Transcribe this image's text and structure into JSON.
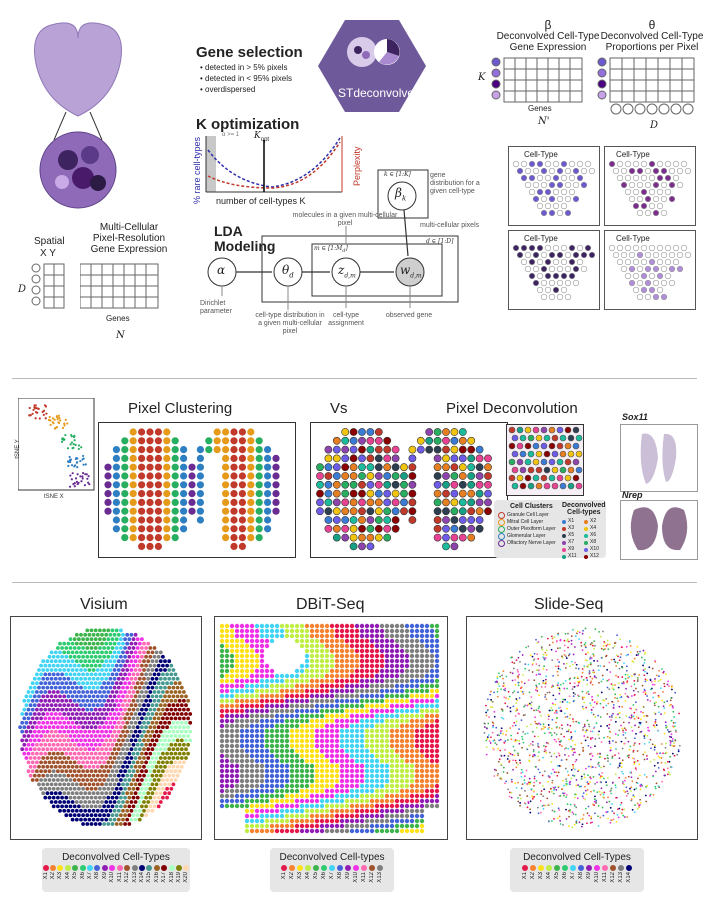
{
  "top": {
    "gene_selection": {
      "title": "Gene selection",
      "bullets": [
        "detected in > 5% pixels",
        "detected in < 95% pixels",
        "overdispersed"
      ]
    },
    "logo": "STdeconvolve",
    "k_opt": {
      "title": "K optimization",
      "ylabel": "% rare cell-types",
      "ylabel2": "Perplexity",
      "xlabel": "number of cell-types K",
      "kopt_label": "K",
      "kopt_sub": "opt",
      "alpha_note": "α >= 1"
    },
    "lda": {
      "title_line1": "LDA",
      "title_line2": "Modeling",
      "alpha": "α",
      "theta": "θ",
      "theta_sub": "d",
      "z": "z",
      "z_sub": "d,m",
      "w": "w",
      "w_sub": "d,m",
      "beta": "β",
      "beta_sub": "k",
      "k_plate": "k ∈ [1:K]",
      "m_plate": "m ∈ [1:M",
      "m_plate_sub": "d",
      "d_plate": "d ∈ [1:D]",
      "dirichlet": "Dirichlet parameter",
      "theta_desc": "cell-type distribution in a given multi-cellular pixel",
      "z_desc": "cell-type assignment",
      "w_desc": "observed gene",
      "molecules": "molecules in a given multi-cellular pixel",
      "multi_pixels": "multi-cellular pixels",
      "beta_desc": "gene distribution for a given cell-type"
    },
    "input": {
      "spatial": "Spatial",
      "xy": "X Y",
      "mc1": "Multi-Cellular",
      "mc2": "Pixel-Resolution",
      "mc3": "Gene Expression",
      "D": "D",
      "genes": "Genes",
      "N": "N"
    },
    "beta_panel": {
      "symbol": "β",
      "line1": "Deconvolved Cell-Type",
      "line2": "Gene Expression",
      "K": "K",
      "genes": "Genes",
      "Nprime": "N'"
    },
    "theta_panel": {
      "symbol": "θ",
      "line1": "Deconvolved Cell-Type",
      "line2": "Proportions per Pixel",
      "D": "D"
    },
    "celltype_label": "Cell-Type"
  },
  "middle": {
    "pixel_clustering": "Pixel Clustering",
    "vs": "Vs",
    "pixel_deconvolution": "Pixel Deconvolution",
    "tsne_x": "tSNE X",
    "tsne_y": "tSNE Y",
    "sox11": "Sox11",
    "nrep": "Nrep",
    "cell_clusters_title": "Cell Clusters",
    "cell_clusters": [
      "Granule Cell Layer",
      "Mitral Cell Layer",
      "Outer Plexiform Layer",
      "Glomerular Layer",
      "Olfactory Nerve Layer"
    ],
    "cluster_colors": [
      "#c0392b",
      "#e69a1a",
      "#27ae60",
      "#2e7fc2",
      "#6a2c91"
    ],
    "deconv_title1": "Deconvolved",
    "deconv_title2": "Cell-types",
    "deconv_labels": [
      "X1",
      "X2",
      "X3",
      "X4",
      "X5",
      "X6",
      "X7",
      "X8",
      "X9",
      "X10",
      "X11",
      "X12"
    ],
    "deconv_colors": [
      "#3a7bd5",
      "#e67e22",
      "#c0392b",
      "#f1c40f",
      "#2c3e50",
      "#1abc9c",
      "#8e44ad",
      "#27ae60",
      "#e84393",
      "#6c5ce7",
      "#16a085",
      "#8b0000"
    ]
  },
  "bottom": {
    "visium": "Visium",
    "dbit": "DBiT-Seq",
    "slide": "Slide-Seq",
    "legend1_title": "Deconvolved Cell-Types",
    "legend1_labels": [
      "X1",
      "X2",
      "X3",
      "X4",
      "X5",
      "X6",
      "X7",
      "X8",
      "X9",
      "X10",
      "X11",
      "X12",
      "X13",
      "X14",
      "X15",
      "X16",
      "X17",
      "X18",
      "X19",
      "X20"
    ],
    "legend2_title": "Deconvolved Cell-types",
    "legend2_labels": [
      "X1",
      "X2",
      "X3",
      "X4",
      "X5",
      "X6",
      "X7",
      "X8",
      "X9",
      "X10",
      "X11",
      "X12",
      "X13"
    ],
    "legend3_title": "Deconvolved Cell-Types",
    "legend3_labels": [
      "X1",
      "X2",
      "X3",
      "X4",
      "X5",
      "X6",
      "X7",
      "X8",
      "X9",
      "X10",
      "X11",
      "X12",
      "X13",
      "X14"
    ],
    "palette": [
      "#e6194b",
      "#f58231",
      "#ffe119",
      "#bfef45",
      "#3cb44b",
      "#2ecc71",
      "#42d4f4",
      "#4363d8",
      "#911eb4",
      "#f032e6",
      "#ff69b4",
      "#a0522d",
      "#7f7f7f",
      "#000075",
      "#469990",
      "#9a6324",
      "#800000",
      "#aaffc3",
      "#808000",
      "#ffd8b1"
    ]
  }
}
